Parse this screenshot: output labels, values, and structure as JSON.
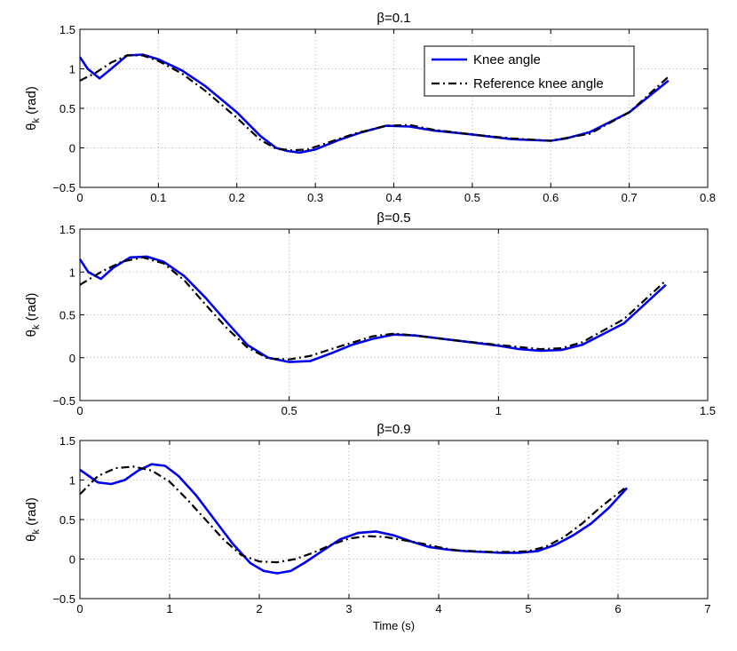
{
  "colors": {
    "knee": "#0000ee",
    "reference": "#000000",
    "grid": "#b0b0b0",
    "axes": "#000000"
  },
  "legend": {
    "location": "top-right (top panel)",
    "entries": [
      {
        "label": "Knee angle",
        "style": "solid",
        "color": "#0000ee"
      },
      {
        "label": "Reference knee angle",
        "style": "dash-dot",
        "color": "#000000"
      }
    ]
  },
  "chart_data": [
    {
      "type": "line",
      "title": "β=0.1",
      "xlabel": "",
      "ylabel": "θk (rad)",
      "ylabel_main": "θ",
      "ylabel_sub": "k",
      "ylabel_rest": " (rad)",
      "xlim": [
        0,
        0.8
      ],
      "ylim": [
        -0.5,
        1.5
      ],
      "xticks": [
        "0",
        "0.1",
        "0.2",
        "0.3",
        "0.4",
        "0.5",
        "0.6",
        "0.7",
        "0.8"
      ],
      "yticks": [
        "−0.5",
        "0",
        "0.5",
        "1",
        "1.5"
      ],
      "grid": true,
      "series": [
        {
          "name": "Knee angle",
          "x": [
            0,
            0.01,
            0.025,
            0.04,
            0.06,
            0.08,
            0.1,
            0.13,
            0.16,
            0.2,
            0.23,
            0.25,
            0.265,
            0.28,
            0.3,
            0.33,
            0.36,
            0.39,
            0.42,
            0.45,
            0.5,
            0.55,
            0.6,
            0.62,
            0.65,
            0.7,
            0.75
          ],
          "y": [
            1.15,
            1.0,
            0.88,
            1.0,
            1.17,
            1.18,
            1.12,
            0.98,
            0.78,
            0.45,
            0.15,
            0.0,
            -0.04,
            -0.06,
            -0.02,
            0.1,
            0.2,
            0.28,
            0.27,
            0.22,
            0.17,
            0.11,
            0.09,
            0.12,
            0.2,
            0.45,
            0.85
          ]
        },
        {
          "name": "Reference knee angle",
          "x": [
            0,
            0.02,
            0.04,
            0.06,
            0.08,
            0.1,
            0.13,
            0.16,
            0.2,
            0.23,
            0.25,
            0.27,
            0.29,
            0.32,
            0.35,
            0.39,
            0.42,
            0.45,
            0.5,
            0.55,
            0.6,
            0.65,
            0.7,
            0.75
          ],
          "y": [
            0.85,
            0.95,
            1.08,
            1.17,
            1.17,
            1.1,
            0.94,
            0.72,
            0.38,
            0.1,
            -0.01,
            -0.03,
            -0.02,
            0.08,
            0.18,
            0.28,
            0.29,
            0.23,
            0.17,
            0.12,
            0.09,
            0.18,
            0.45,
            0.9
          ]
        }
      ]
    },
    {
      "type": "line",
      "title": "β=0.5",
      "xlabel": "",
      "ylabel": "θk (rad)",
      "ylabel_main": "θ",
      "ylabel_sub": "k",
      "ylabel_rest": " (rad)",
      "xlim": [
        0,
        1.5
      ],
      "ylim": [
        -0.5,
        1.5
      ],
      "xticks": [
        "0",
        "0.5",
        "1",
        "1.5"
      ],
      "yticks": [
        "−0.5",
        "0",
        "0.5",
        "1",
        "1.5"
      ],
      "grid": true,
      "series": [
        {
          "name": "Knee angle",
          "x": [
            0,
            0.02,
            0.05,
            0.08,
            0.12,
            0.16,
            0.2,
            0.25,
            0.3,
            0.35,
            0.4,
            0.45,
            0.5,
            0.55,
            0.6,
            0.65,
            0.7,
            0.75,
            0.8,
            0.9,
            1.0,
            1.05,
            1.1,
            1.15,
            1.2,
            1.3,
            1.4
          ],
          "y": [
            1.15,
            1.0,
            0.92,
            1.05,
            1.17,
            1.18,
            1.12,
            0.95,
            0.7,
            0.42,
            0.15,
            0.0,
            -0.05,
            -0.04,
            0.05,
            0.15,
            0.22,
            0.27,
            0.26,
            0.2,
            0.14,
            0.1,
            0.08,
            0.09,
            0.15,
            0.4,
            0.85
          ]
        },
        {
          "name": "Reference knee angle",
          "x": [
            0,
            0.05,
            0.1,
            0.15,
            0.2,
            0.25,
            0.3,
            0.35,
            0.4,
            0.45,
            0.5,
            0.55,
            0.6,
            0.7,
            0.75,
            0.8,
            0.9,
            1.0,
            1.1,
            1.15,
            1.2,
            1.3,
            1.4
          ],
          "y": [
            0.85,
            1.0,
            1.12,
            1.17,
            1.1,
            0.9,
            0.62,
            0.35,
            0.12,
            -0.01,
            -0.02,
            0.02,
            0.1,
            0.25,
            0.28,
            0.26,
            0.2,
            0.15,
            0.1,
            0.11,
            0.18,
            0.45,
            0.9
          ]
        }
      ]
    },
    {
      "type": "line",
      "title": "β=0.9",
      "xlabel": "Time (s)",
      "ylabel": "θk (rad)",
      "ylabel_main": "θ",
      "ylabel_sub": "k",
      "ylabel_rest": " (rad)",
      "xlim": [
        0,
        7
      ],
      "ylim": [
        -0.5,
        1.5
      ],
      "xticks": [
        "0",
        "1",
        "2",
        "3",
        "4",
        "5",
        "6",
        "7"
      ],
      "yticks": [
        "−0.5",
        "0",
        "0.5",
        "1",
        "1.5"
      ],
      "grid": true,
      "series": [
        {
          "name": "Knee angle",
          "x": [
            0,
            0.1,
            0.2,
            0.35,
            0.5,
            0.65,
            0.8,
            0.95,
            1.1,
            1.3,
            1.5,
            1.7,
            1.9,
            2.05,
            2.2,
            2.35,
            2.5,
            2.7,
            2.9,
            3.1,
            3.3,
            3.5,
            3.7,
            3.9,
            4.1,
            4.3,
            4.5,
            4.7,
            4.9,
            5.1,
            5.3,
            5.5,
            5.7,
            5.9,
            6.1
          ],
          "y": [
            1.13,
            1.05,
            0.97,
            0.95,
            1.0,
            1.12,
            1.2,
            1.18,
            1.05,
            0.8,
            0.5,
            0.2,
            -0.05,
            -0.15,
            -0.18,
            -0.15,
            -0.05,
            0.1,
            0.25,
            0.33,
            0.35,
            0.3,
            0.22,
            0.15,
            0.12,
            0.1,
            0.09,
            0.08,
            0.08,
            0.1,
            0.18,
            0.3,
            0.45,
            0.65,
            0.9
          ]
        },
        {
          "name": "Reference knee angle",
          "x": [
            0,
            0.2,
            0.4,
            0.6,
            0.8,
            1.0,
            1.2,
            1.4,
            1.6,
            1.8,
            2.0,
            2.2,
            2.4,
            2.6,
            2.8,
            3.0,
            3.2,
            3.4,
            3.6,
            3.8,
            4.0,
            4.2,
            4.4,
            4.6,
            4.8,
            5.0,
            5.2,
            5.4,
            5.6,
            5.8,
            6.1
          ],
          "y": [
            0.82,
            1.05,
            1.15,
            1.17,
            1.12,
            0.98,
            0.75,
            0.5,
            0.25,
            0.05,
            -0.03,
            -0.04,
            0.0,
            0.08,
            0.18,
            0.26,
            0.29,
            0.28,
            0.24,
            0.2,
            0.15,
            0.11,
            0.1,
            0.09,
            0.09,
            0.1,
            0.16,
            0.28,
            0.45,
            0.65,
            0.92
          ]
        }
      ]
    }
  ]
}
